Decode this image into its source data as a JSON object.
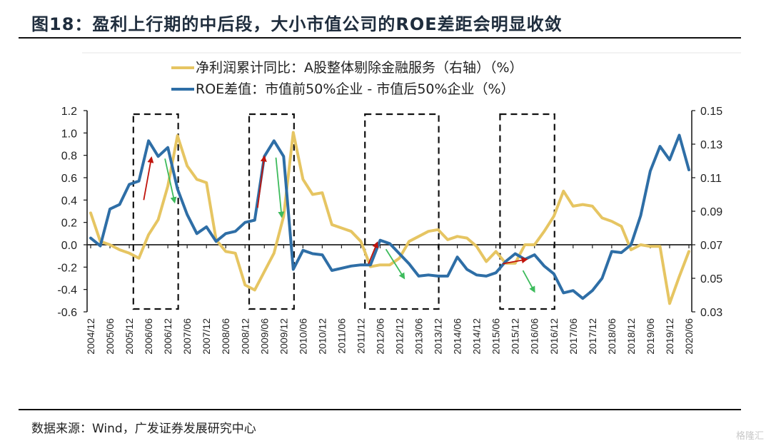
{
  "header": {
    "title": "图18：盈利上行期的中后段，大小市值公司的ROE差距会明显收敛"
  },
  "footer": {
    "source": "数据来源：Wind，广发证券发展研究中心",
    "watermark": "格隆汇"
  },
  "colors": {
    "yellow_series": "#E6C562",
    "blue_series": "#2E6EA6",
    "up_arrow": "#C0140C",
    "down_arrow": "#3DBB5C",
    "box": "#111111"
  },
  "chart_data": {
    "type": "line",
    "title": "",
    "xlabel": "",
    "ylabel_left": "",
    "ylabel_right": "",
    "legend_position": "top-center",
    "grid": false,
    "left_axis": {
      "ylim": [
        -0.6,
        1.2
      ],
      "ticks": [
        "1.2",
        "1.0",
        "0.8",
        "0.6",
        "0.4",
        "0.2",
        "0.0",
        "-0.2",
        "-0.4",
        "-0.6"
      ],
      "tick_values": [
        1.2,
        1.0,
        0.8,
        0.6,
        0.4,
        0.2,
        0.0,
        -0.2,
        -0.4,
        -0.6
      ]
    },
    "right_axis": {
      "ylim": [
        0.03,
        0.15
      ],
      "ticks": [
        "0.15",
        "0.13",
        "0.11",
        "0.09",
        "0.07",
        "0.05",
        "0.03"
      ],
      "tick_values": [
        0.15,
        0.13,
        0.11,
        0.09,
        0.07,
        0.05,
        0.03
      ]
    },
    "x_tick_labels": [
      "2004/12",
      "2005/06",
      "2005/12",
      "2006/06",
      "2006/12",
      "2007/06",
      "2007/12",
      "2008/06",
      "2008/12",
      "2009/06",
      "2009/12",
      "2010/06",
      "2010/12",
      "2011/06",
      "2011/12",
      "2012/06",
      "2012/12",
      "2013/06",
      "2013/12",
      "2014/06",
      "2014/12",
      "2015/06",
      "2015/12",
      "2016/06",
      "2016/12",
      "2017/06",
      "2017/12",
      "2018/06",
      "2018/12",
      "2019/06",
      "2019/12",
      "2020/06"
    ],
    "x_points": 63,
    "x_period": "quarterly, 2004/12 to 2020/06",
    "series": [
      {
        "name": "净利润累计同比：A股整体剔除金融服务（右轴）（%）",
        "axis": "right",
        "values": [
          0.089,
          0.072,
          0.07,
          0.067,
          0.065,
          0.062,
          0.076,
          0.085,
          0.105,
          0.135,
          0.117,
          0.109,
          0.107,
          0.073,
          0.066,
          0.065,
          0.046,
          0.043,
          0.054,
          0.065,
          0.087,
          0.137,
          0.109,
          0.1,
          0.101,
          0.082,
          0.08,
          0.078,
          0.072,
          0.057,
          0.058,
          0.058,
          0.062,
          0.072,
          0.075,
          0.078,
          0.079,
          0.073,
          0.075,
          0.074,
          0.069,
          0.06,
          0.066,
          0.059,
          0.059,
          0.07,
          0.07,
          0.078,
          0.087,
          0.102,
          0.093,
          0.094,
          0.093,
          0.086,
          0.084,
          0.081,
          0.067,
          0.07,
          0.069,
          0.069,
          0.035,
          0.051,
          0.066
        ]
      },
      {
        "name": "ROE差值：市值前50%企业 - 市值后50%企业（%）",
        "axis": "left",
        "values": [
          0.06,
          -0.01,
          0.32,
          0.36,
          0.54,
          0.57,
          0.93,
          0.79,
          0.87,
          0.5,
          0.27,
          0.1,
          0.16,
          0.03,
          0.1,
          0.12,
          0.2,
          0.22,
          0.79,
          0.93,
          0.79,
          -0.22,
          -0.05,
          -0.08,
          -0.09,
          -0.23,
          -0.21,
          -0.19,
          -0.18,
          -0.18,
          0.04,
          0.01,
          -0.08,
          -0.17,
          -0.28,
          -0.27,
          -0.28,
          -0.28,
          -0.11,
          -0.22,
          -0.27,
          -0.28,
          -0.25,
          -0.15,
          -0.08,
          -0.13,
          -0.09,
          -0.19,
          -0.26,
          -0.43,
          -0.41,
          -0.48,
          -0.41,
          -0.3,
          -0.06,
          -0.07,
          0.0,
          0.26,
          0.66,
          0.88,
          0.76,
          0.98,
          0.67
        ]
      }
    ],
    "highlight_boxes": [
      {
        "from_index": 4.5,
        "to_index": 9
      },
      {
        "from_index": 16.5,
        "to_index": 21
      },
      {
        "from_index": 28.5,
        "to_index": 36
      },
      {
        "from_index": 42.5,
        "to_index": 48
      }
    ],
    "arrows": [
      {
        "direction": "up",
        "color": "up_arrow",
        "from": [
          5.5,
          0.4
        ],
        "to": [
          6.3,
          0.78
        ]
      },
      {
        "direction": "down",
        "color": "down_arrow",
        "from": [
          7.7,
          0.77
        ],
        "to": [
          8.7,
          0.38
        ]
      },
      {
        "direction": "up",
        "color": "up_arrow",
        "from": [
          17.3,
          0.33
        ],
        "to": [
          18.0,
          0.79
        ]
      },
      {
        "direction": "down",
        "color": "down_arrow",
        "from": [
          19.2,
          0.78
        ],
        "to": [
          19.8,
          0.25
        ]
      },
      {
        "direction": "up",
        "color": "up_arrow",
        "from": [
          28.8,
          -0.17
        ],
        "to": [
          29.7,
          0.02
        ]
      },
      {
        "direction": "down",
        "color": "down_arrow",
        "from": [
          30.6,
          -0.04
        ],
        "to": [
          32.5,
          -0.3
        ]
      },
      {
        "direction": "right",
        "color": "up_arrow",
        "from": [
          42.7,
          -0.17
        ],
        "to": [
          45.2,
          -0.13
        ]
      },
      {
        "direction": "down",
        "color": "down_arrow",
        "from": [
          44.8,
          -0.23
        ],
        "to": [
          46.0,
          -0.42
        ]
      }
    ]
  }
}
